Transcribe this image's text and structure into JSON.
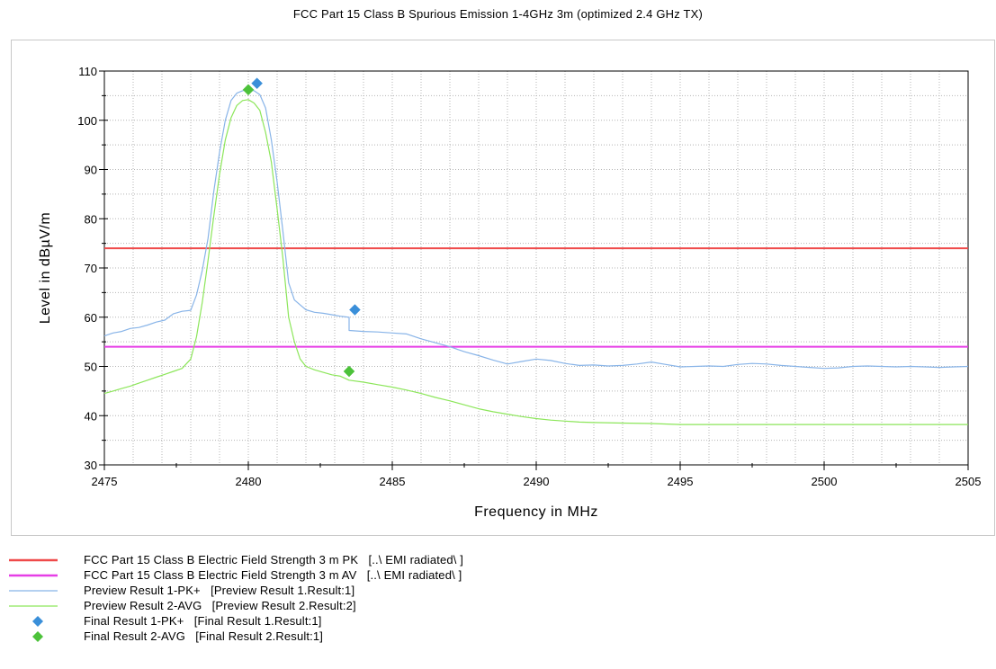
{
  "chart_data": {
    "type": "line",
    "title": "FCC Part 15 Class B Spurious Emission 1-4GHz 3m (optimized 2.4 GHz TX)",
    "xlabel": "Frequency in MHz",
    "ylabel": "Level in dBµV/m",
    "xlim": [
      2475,
      2505
    ],
    "ylim": [
      30,
      110
    ],
    "x_major_ticks": [
      2475,
      2480,
      2485,
      2490,
      2495,
      2500,
      2505
    ],
    "y_major_ticks": [
      30,
      40,
      50,
      60,
      70,
      80,
      90,
      100,
      110
    ],
    "grid": true,
    "legend_position": "bottom",
    "series": [
      {
        "name": "FCC Part 15 Class B Electric Field Strength 3 m PK",
        "source": "[..\\ EMI radiated\\ ]",
        "kind": "limit",
        "color": "#ef4a4a",
        "x": [
          2475,
          2505
        ],
        "y": [
          74,
          74
        ]
      },
      {
        "name": "FCC Part 15 Class B Electric Field Strength 3 m AV",
        "source": "[..\\ EMI radiated\\ ]",
        "kind": "limit",
        "color": "#e63ee6",
        "x": [
          2475,
          2505
        ],
        "y": [
          54,
          54
        ]
      },
      {
        "name": "Preview Result 1-PK+",
        "source": "[Preview Result 1.Result:1]",
        "kind": "line",
        "color": "#88b4e8",
        "x": [
          2475,
          2475.3,
          2475.6,
          2475.9,
          2476.2,
          2476.5,
          2476.8,
          2477.1,
          2477.4,
          2477.7,
          2478.0,
          2478.2,
          2478.4,
          2478.6,
          2478.8,
          2479.0,
          2479.2,
          2479.4,
          2479.6,
          2479.8,
          2480.0,
          2480.2,
          2480.4,
          2480.6,
          2480.8,
          2481.0,
          2481.2,
          2481.4,
          2481.6,
          2481.8,
          2482.0,
          2482.3,
          2482.6,
          2482.9,
          2483.2,
          2483.5,
          2483.5,
          2484.0,
          2484.5,
          2485.0,
          2485.5,
          2486.0,
          2486.5,
          2487.0,
          2487.5,
          2488.0,
          2488.5,
          2489.0,
          2489.5,
          2490.0,
          2490.5,
          2491.0,
          2491.5,
          2492.0,
          2492.5,
          2493.0,
          2493.5,
          2494.0,
          2494.5,
          2495.0,
          2495.5,
          2496.0,
          2496.5,
          2497.0,
          2497.5,
          2498.0,
          2498.5,
          2499.0,
          2499.5,
          2500.0,
          2500.5,
          2501.0,
          2501.5,
          2502.0,
          2502.5,
          2503.0,
          2503.5,
          2504.0,
          2504.5,
          2505.0
        ],
        "y": [
          56.2,
          56.8,
          57.1,
          57.7,
          57.9,
          58.4,
          59.0,
          59.4,
          60.7,
          61.2,
          61.4,
          64.5,
          69.5,
          76.0,
          85.5,
          93.5,
          100.0,
          104.0,
          105.5,
          106.0,
          106.3,
          106.0,
          105.2,
          102.5,
          96.0,
          87.5,
          77.5,
          67.0,
          63.5,
          62.5,
          61.5,
          61.0,
          60.8,
          60.5,
          60.2,
          60.0,
          57.3,
          57.1,
          57.0,
          56.8,
          56.6,
          55.6,
          54.8,
          54.0,
          53.0,
          52.2,
          51.3,
          50.5,
          51.0,
          51.5,
          51.2,
          50.6,
          50.2,
          50.3,
          50.1,
          50.2,
          50.5,
          50.9,
          50.4,
          49.9,
          50.0,
          50.1,
          50.0,
          50.4,
          50.6,
          50.5,
          50.2,
          50.0,
          49.8,
          49.6,
          49.7,
          50.0,
          50.1,
          50.0,
          49.9,
          50.0,
          49.9,
          49.8,
          49.9,
          50.0
        ]
      },
      {
        "name": "Preview Result 2-AVG",
        "source": "[Preview Result 2.Result:2]",
        "kind": "line",
        "color": "#8ce65a",
        "x": [
          2475,
          2475.3,
          2475.6,
          2475.9,
          2476.2,
          2476.5,
          2476.8,
          2477.1,
          2477.4,
          2477.7,
          2478.0,
          2478.2,
          2478.4,
          2478.6,
          2478.8,
          2479.0,
          2479.2,
          2479.4,
          2479.6,
          2479.8,
          2480.0,
          2480.2,
          2480.4,
          2480.6,
          2480.8,
          2481.0,
          2481.2,
          2481.4,
          2481.6,
          2481.8,
          2482.0,
          2482.3,
          2482.6,
          2482.9,
          2483.2,
          2483.5,
          2484.0,
          2484.5,
          2485.0,
          2485.5,
          2486.0,
          2486.5,
          2487.0,
          2487.5,
          2488.0,
          2488.5,
          2489.0,
          2489.5,
          2490.0,
          2490.5,
          2491.0,
          2491.5,
          2492.0,
          2493.0,
          2494.0,
          2495.0,
          2496.0,
          2497.0,
          2498.0,
          2499.0,
          2500.0,
          2501.0,
          2502.0,
          2503.0,
          2504.0,
          2505.0
        ],
        "y": [
          44.5,
          45.0,
          45.5,
          46.0,
          46.6,
          47.2,
          47.8,
          48.4,
          49.0,
          49.6,
          51.5,
          56.0,
          63.0,
          71.5,
          80.5,
          89.0,
          96.0,
          100.5,
          103.0,
          104.0,
          104.2,
          103.5,
          102.0,
          97.5,
          91.5,
          82.0,
          72.0,
          60.0,
          55.0,
          51.5,
          50.0,
          49.3,
          48.8,
          48.3,
          48.0,
          47.2,
          46.8,
          46.3,
          45.8,
          45.2,
          44.5,
          43.7,
          43.0,
          42.2,
          41.4,
          40.8,
          40.3,
          39.8,
          39.4,
          39.1,
          38.9,
          38.7,
          38.6,
          38.5,
          38.4,
          38.2,
          38.2,
          38.2,
          38.2,
          38.2,
          38.2,
          38.2,
          38.2,
          38.2,
          38.2,
          38.2
        ]
      },
      {
        "name": "Final Result 1-PK+",
        "source": "[Final Result 1.Result:1]",
        "kind": "marker",
        "color": "#3a8fd9",
        "x": [
          2480.3,
          2483.7
        ],
        "y": [
          107.5,
          61.5
        ]
      },
      {
        "name": "Final Result 2-AVG",
        "source": "[Final Result 2.Result:1]",
        "kind": "marker",
        "color": "#4cc23a",
        "x": [
          2480.0,
          2483.5
        ],
        "y": [
          106.2,
          49.0
        ]
      }
    ]
  }
}
